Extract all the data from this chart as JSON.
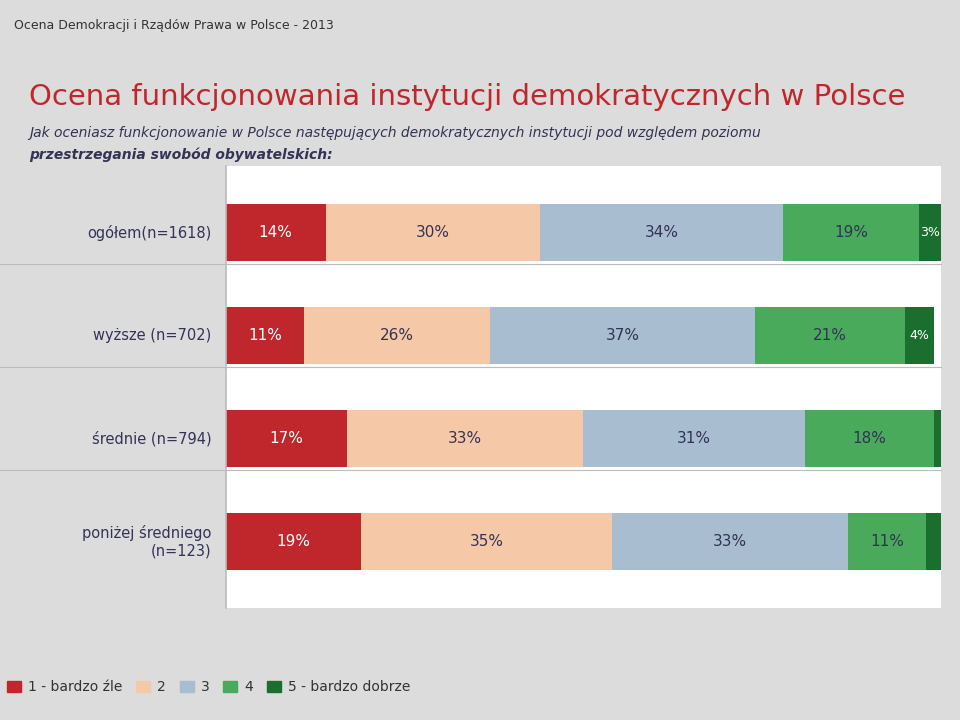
{
  "header_text": "Ocena Demokracji i Rządów Prawa w Polsce - 2013",
  "title": "Ocena funkcjonowania instytucji demokratycznych w Polsce",
  "subtitle_line1": "Jak oceniasz funkcjonowanie w Polsce następujących demokratycznych instytucji pod względem poziomu",
  "subtitle_line2": "przestrzegania swobód obywatelskich:",
  "categories": [
    "ogółem(n=1618)",
    "wyższe (n=702)",
    "średnie (n=794)",
    "poniżej średniego\n(n=123)"
  ],
  "series": [
    {
      "name": "1 - bardzo źle",
      "color": "#c0272d",
      "values": [
        14,
        11,
        17,
        19
      ]
    },
    {
      "name": "2",
      "color": "#f5c9a8",
      "values": [
        30,
        26,
        33,
        35
      ]
    },
    {
      "name": "3",
      "color": "#a8bdd0",
      "values": [
        34,
        37,
        31,
        33
      ]
    },
    {
      "name": "4",
      "color": "#4aaa5c",
      "values": [
        19,
        21,
        18,
        11
      ]
    },
    {
      "name": "5 - bardzo dobrze",
      "color": "#1a6e2e",
      "values": [
        3,
        4,
        1,
        2
      ]
    }
  ],
  "header_bg": "#c8c8c8",
  "content_bg": "#ffffff",
  "fig_bg": "#dcdcdc",
  "bar_height": 0.55,
  "title_color": "#c0272d",
  "subtitle_color": "#333355",
  "category_color": "#333355",
  "divider_color": "#bbbbbb",
  "red_line_color": "#c0272d",
  "legend_text_color": "#333333"
}
